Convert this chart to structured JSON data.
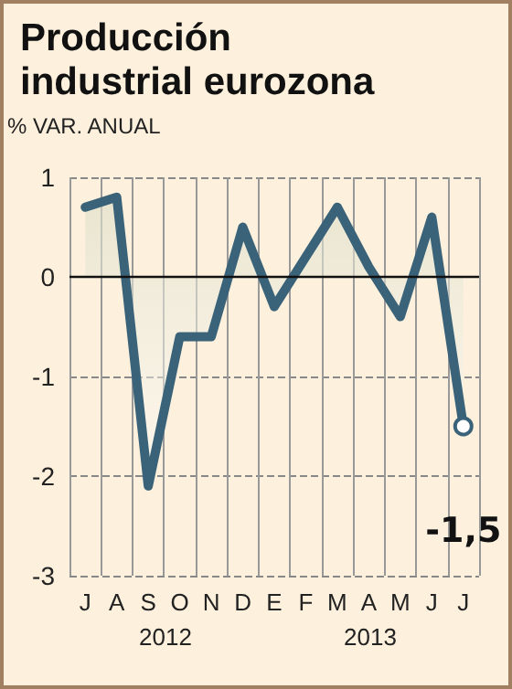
{
  "chart_data": {
    "type": "area",
    "title": "Producción\nindustrial eurozona",
    "ylabel": "% VAR. ANUAL",
    "categories": [
      "J",
      "A",
      "S",
      "O",
      "N",
      "D",
      "E",
      "F",
      "M",
      "A",
      "M",
      "J",
      "J"
    ],
    "series": [
      {
        "color": "#3a6278",
        "values": [
          0.7,
          0.8,
          -2.1,
          -0.6,
          -0.6,
          0.5,
          -0.3,
          0.2,
          0.7,
          0.1,
          -0.4,
          0.6,
          -1.5
        ],
        "value_labels": [
          null,
          null,
          null,
          null,
          null,
          null,
          null,
          null,
          null,
          null,
          null,
          null,
          "-1,5"
        ]
      }
    ],
    "ylim": [
      -3,
      1
    ],
    "yticks": [
      -3,
      -2,
      -1,
      0,
      1
    ],
    "grid": true,
    "marker": "none",
    "line_style": "solid",
    "annotations": [
      "2012",
      "2013"
    ]
  }
}
